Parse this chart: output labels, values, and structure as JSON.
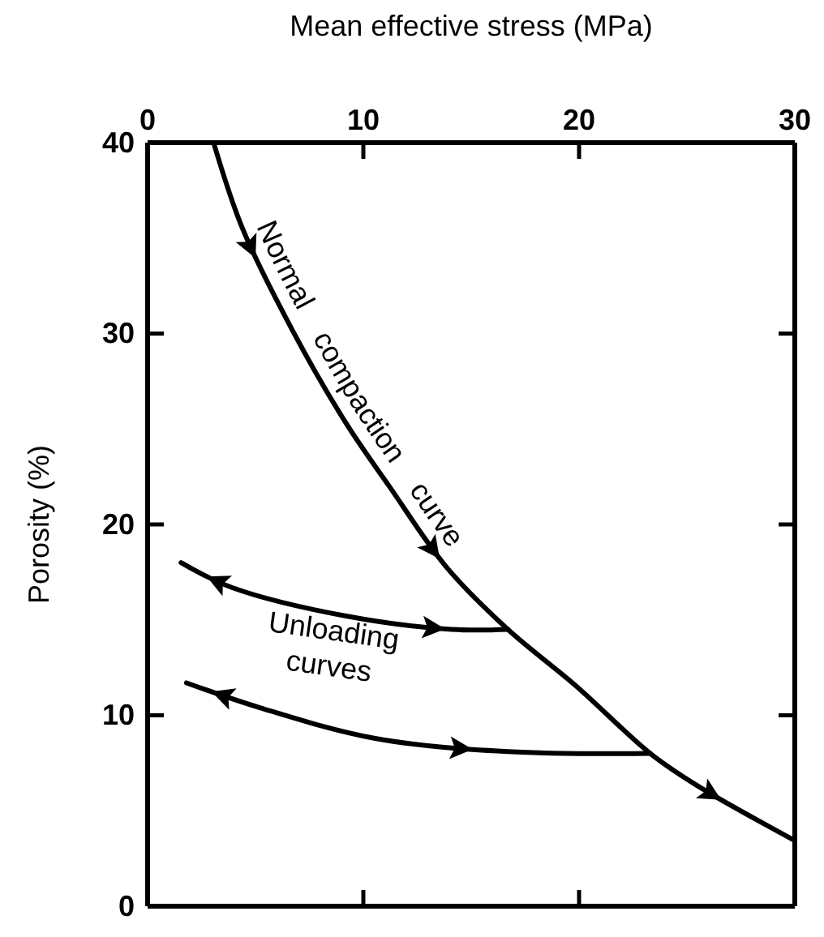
{
  "chart_data": {
    "type": "line",
    "xlabel": "Mean effective stress (MPa)",
    "ylabel": "Porosity (%)",
    "xlim": [
      0,
      30
    ],
    "xticks": [
      0,
      10,
      20,
      30
    ],
    "ylim": [
      0,
      40
    ],
    "yticks": [
      0,
      10,
      20,
      30,
      40
    ],
    "grid": false,
    "line_style": "solid",
    "marker": "none",
    "series": [
      {
        "color": "#000000",
        "x": [
          3.06,
          4.4,
          6.7,
          9.2,
          11.2,
          13.9,
          16.7,
          19.9,
          23.3,
          25.5,
          29.9
        ],
        "values": [
          40,
          35.5,
          30.2,
          25.3,
          22.0,
          17.7,
          14.5,
          11.5,
          8.0,
          6.3,
          3.5
        ]
      },
      {
        "color": "#000000",
        "x": [
          1.55,
          3.9,
          9.2,
          14.1,
          16.7
        ],
        "values": [
          18.0,
          16.7,
          15.2,
          14.5,
          14.5
        ]
      },
      {
        "color": "#000000",
        "x": [
          1.8,
          5.2,
          10.5,
          16.7,
          23.3
        ],
        "values": [
          11.7,
          10.4,
          8.8,
          8.1,
          8.0
        ]
      }
    ],
    "annotations": [
      "Normal compaction curve",
      "Unloading curves"
    ]
  }
}
